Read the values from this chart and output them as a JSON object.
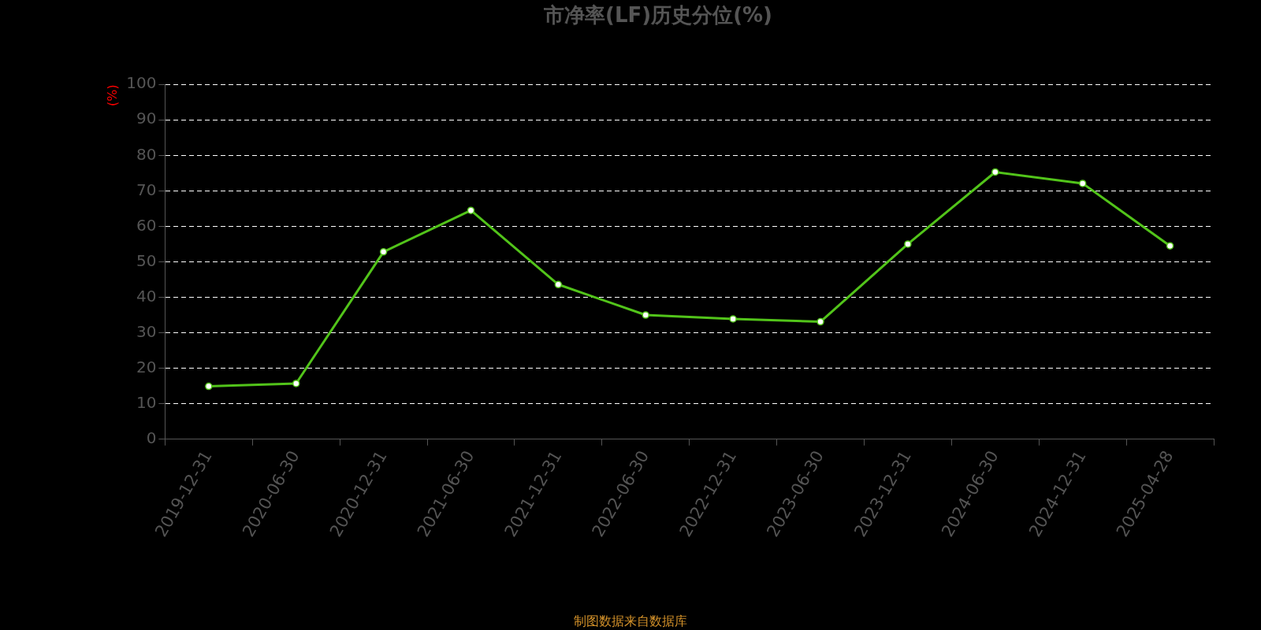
{
  "chart_data": {
    "type": "line",
    "title": "市净率(LF)历史分位(%)",
    "ylabel": "(%)",
    "categories": [
      "2019-12-31",
      "2020-06-30",
      "2020-12-31",
      "2021-06-30",
      "2021-12-31",
      "2022-06-30",
      "2022-12-31",
      "2023-06-30",
      "2023-12-31",
      "2024-06-30",
      "2024-12-31",
      "2025-04-28"
    ],
    "series": [
      {
        "color": "#52c41a",
        "values": [
          14.9,
          15.7,
          52.8,
          64.5,
          43.6,
          35.0,
          33.9,
          33.1,
          55.0,
          75.3,
          72.1,
          54.5
        ]
      }
    ],
    "ylim": [
      0,
      100
    ],
    "yticks": [
      0,
      10,
      20,
      30,
      40,
      50,
      60,
      70,
      80,
      90,
      100
    ],
    "grid": "y",
    "legend": false,
    "marker": "circle",
    "line_style": "solid",
    "annotations": [
      "制图数据来自数据库"
    ]
  }
}
